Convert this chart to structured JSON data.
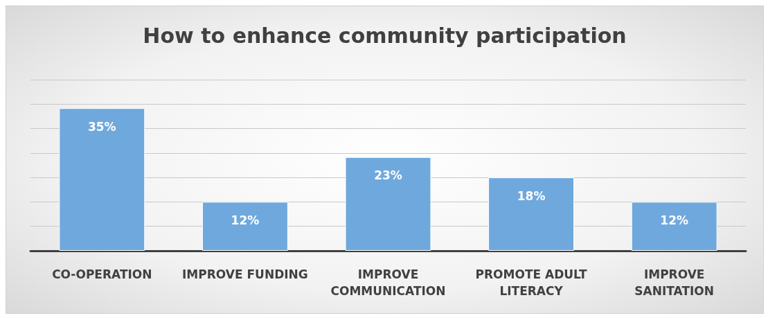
{
  "chart_data": {
    "type": "bar",
    "title": "How to enhance community participation",
    "categories": [
      "CO-OPERATION",
      "IMPROVE FUNDING",
      "IMPROVE COMMUNICATION",
      "PROMOTE ADULT LITERACY",
      "IMPROVE SANITATION"
    ],
    "values": [
      35,
      12,
      23,
      18,
      12
    ],
    "value_labels": [
      "35%",
      "12%",
      "23%",
      "18%",
      "12%"
    ],
    "color": "#6fa8dc",
    "ylim": [
      0,
      42
    ],
    "yticks": [
      {
        "value": 0,
        "label": null
      },
      {
        "value": 6,
        "label": null
      },
      {
        "value": 12,
        "label": null
      },
      {
        "value": 18,
        "label": null
      },
      {
        "value": 24,
        "label": null
      },
      {
        "value": 30,
        "label": null
      },
      {
        "value": 36,
        "label": null
      },
      {
        "value": 42,
        "label": null
      }
    ],
    "tick_labels": "x",
    "grid": "y"
  }
}
